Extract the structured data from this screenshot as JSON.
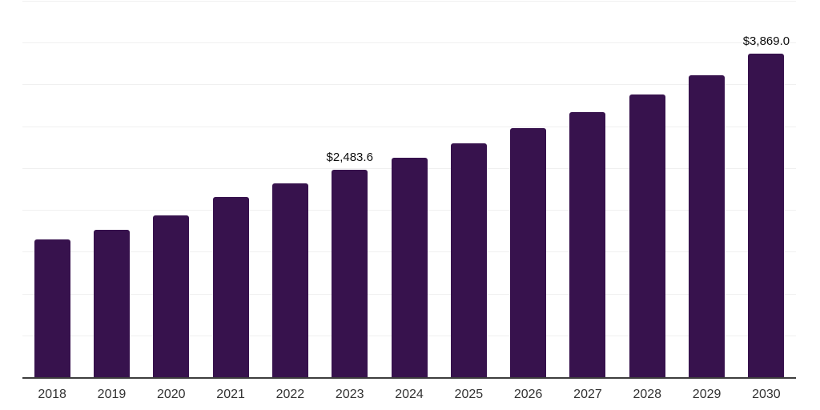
{
  "chart_data": {
    "type": "bar",
    "title": "",
    "xlabel": "",
    "ylabel": "",
    "categories": [
      "2018",
      "2019",
      "2020",
      "2021",
      "2022",
      "2023",
      "2024",
      "2025",
      "2026",
      "2027",
      "2028",
      "2029",
      "2030"
    ],
    "values": [
      1650,
      1762,
      1937,
      2154,
      2314,
      2483.6,
      2623,
      2793,
      2975,
      3166,
      3377,
      3612,
      3869.0
    ],
    "ylim": [
      0,
      4500
    ],
    "gridline_step": 500,
    "grid": "horizontal",
    "y_axis_tick_labels": "hidden",
    "legend_position": "none",
    "data_labels": [
      {
        "category": "2023",
        "text": "$2,483.6"
      },
      {
        "category": "2030",
        "text": "$3,869.0"
      }
    ]
  },
  "colors": {
    "bar": "#37124d",
    "gridline": "#f0f0f0",
    "axis_line": "#3d3d3d",
    "tick_label": "#333333",
    "data_label": "#0d0d0d",
    "background": "#ffffff"
  }
}
